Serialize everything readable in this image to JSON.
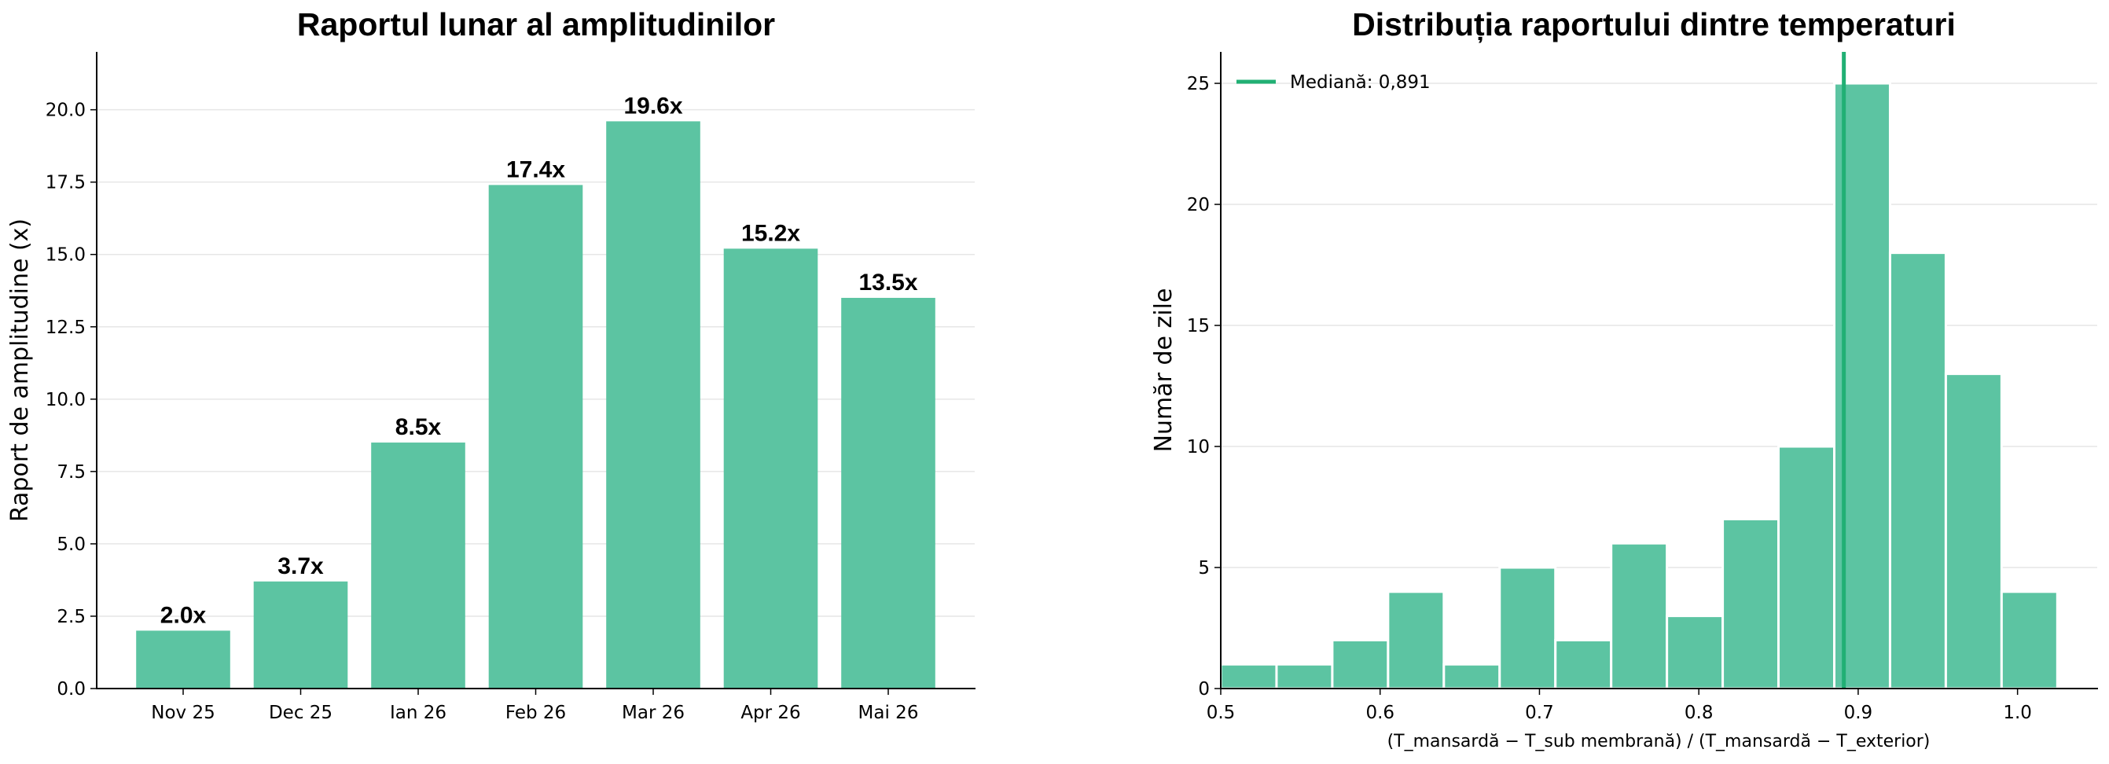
{
  "colors": {
    "bar": "#5cc4a2",
    "median": "#21b074",
    "grid": "#e6e6e6"
  },
  "chart_data": [
    {
      "type": "bar",
      "title": "Raportul lunar al amplitudinilor",
      "xlabel": "",
      "ylabel": "Raport de amplitudine (x)",
      "categories": [
        "Nov 25",
        "Dec 25",
        "Ian 26",
        "Feb 26",
        "Mar 26",
        "Apr 26",
        "Mai 26"
      ],
      "values": [
        2.0,
        3.7,
        8.5,
        17.4,
        19.6,
        15.2,
        13.5
      ],
      "data_labels": [
        "2.0x",
        "3.7x",
        "8.5x",
        "17.4x",
        "19.6x",
        "15.2x",
        "13.5x"
      ],
      "ylim": [
        0,
        22
      ],
      "yticks": [
        0.0,
        2.5,
        5.0,
        7.5,
        10.0,
        12.5,
        15.0,
        17.5,
        20.0
      ],
      "ytick_labels": [
        "0.0",
        "2.5",
        "5.0",
        "7.5",
        "10.0",
        "12.5",
        "15.0",
        "17.5",
        "20.0"
      ],
      "grid": "y"
    },
    {
      "type": "histogram",
      "title": "Distribuția raportului dintre temperaturi",
      "xlabel": "(T_mansardă − T_sub membrană) / (T_mansardă − T_exterior)",
      "ylabel": "Număr de zile",
      "bin_edges": [
        0.5,
        0.535,
        0.57,
        0.605,
        0.64,
        0.675,
        0.71,
        0.745,
        0.78,
        0.815,
        0.85,
        0.885,
        0.92,
        0.955,
        0.99,
        1.025
      ],
      "counts": [
        1,
        1,
        2,
        4,
        1,
        5,
        2,
        6,
        3,
        7,
        10,
        25,
        18,
        13,
        4
      ],
      "xlim": [
        0.5,
        1.05
      ],
      "ylim": [
        0,
        26.3
      ],
      "xticks": [
        0.5,
        0.6,
        0.7,
        0.8,
        0.9,
        1.0
      ],
      "xtick_labels": [
        "0.5",
        "0.6",
        "0.7",
        "0.8",
        "0.9",
        "1.0"
      ],
      "yticks": [
        0,
        5,
        10,
        15,
        20,
        25
      ],
      "ytick_labels": [
        "0",
        "5",
        "10",
        "15",
        "20",
        "25"
      ],
      "median": 0.891,
      "legend": {
        "position": "top-left",
        "label": "Mediană: 0,891"
      },
      "grid": "y"
    }
  ]
}
